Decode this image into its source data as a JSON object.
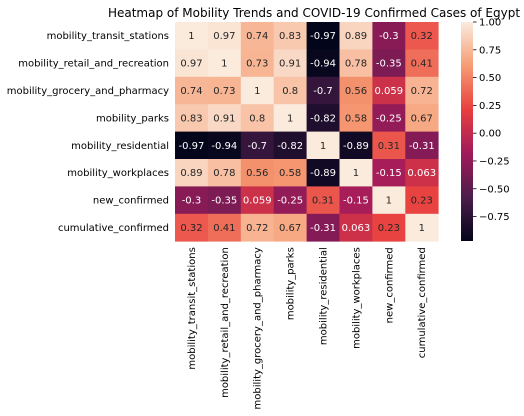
{
  "chart_data": {
    "type": "heatmap",
    "title": "Heatmap of Mobility Trends and COVID-19 Confirmed Cases of Egypt",
    "labels": [
      "mobility_transit_stations",
      "mobility_retail_and_recreation",
      "mobility_grocery_and_pharmacy",
      "mobility_parks",
      "mobility_residential",
      "mobility_workplaces",
      "new_confirmed",
      "cumulative_confirmed"
    ],
    "values": [
      [
        1,
        0.97,
        0.74,
        0.83,
        -0.97,
        0.89,
        -0.3,
        0.32
      ],
      [
        0.97,
        1,
        0.73,
        0.91,
        -0.94,
        0.78,
        -0.35,
        0.41
      ],
      [
        0.74,
        0.73,
        1,
        0.8,
        -0.7,
        0.56,
        0.059,
        0.72
      ],
      [
        0.83,
        0.91,
        0.8,
        1,
        -0.82,
        0.58,
        -0.25,
        0.67
      ],
      [
        -0.97,
        -0.94,
        -0.7,
        -0.82,
        1,
        -0.89,
        0.31,
        -0.31
      ],
      [
        0.89,
        0.78,
        0.56,
        0.58,
        -0.89,
        1,
        -0.15,
        0.063
      ],
      [
        -0.3,
        -0.35,
        0.059,
        -0.25,
        0.31,
        -0.15,
        1,
        0.23
      ],
      [
        0.32,
        0.41,
        0.72,
        0.67,
        -0.31,
        0.063,
        0.23,
        1
      ]
    ],
    "cell_text": [
      [
        "1",
        "0.97",
        "0.74",
        "0.83",
        "-0.97",
        "0.89",
        "-0.3",
        "0.32"
      ],
      [
        "0.97",
        "1",
        "0.73",
        "0.91",
        "-0.94",
        "0.78",
        "-0.35",
        "0.41"
      ],
      [
        "0.74",
        "0.73",
        "1",
        "0.8",
        "-0.7",
        "0.56",
        "0.059",
        "0.72"
      ],
      [
        "0.83",
        "0.91",
        "0.8",
        "1",
        "-0.82",
        "0.58",
        "-0.25",
        "0.67"
      ],
      [
        "-0.97",
        "-0.94",
        "-0.7",
        "-0.82",
        "1",
        "-0.89",
        "0.31",
        "-0.31"
      ],
      [
        "0.89",
        "0.78",
        "0.56",
        "0.58",
        "-0.89",
        "1",
        "-0.15",
        "0.063"
      ],
      [
        "-0.3",
        "-0.35",
        "0.059",
        "-0.25",
        "0.31",
        "-0.15",
        "1",
        "0.23"
      ],
      [
        "0.32",
        "0.41",
        "0.72",
        "0.67",
        "-0.31",
        "0.063",
        "0.23",
        "1"
      ]
    ],
    "colorbar": {
      "vmin": -0.97,
      "vmax": 1,
      "ticks": [
        1.0,
        0.75,
        0.5,
        0.25,
        0.0,
        -0.25,
        -0.5,
        -0.75
      ],
      "tick_labels": [
        "1.00",
        "0.75",
        "0.50",
        "0.25",
        "0.00",
        "−0.25",
        "−0.50",
        "−0.75"
      ]
    },
    "colormap": [
      "#03051a",
      "#4c1d4b",
      "#a11a5b",
      "#e83f3f",
      "#f69c73",
      "#faebdd"
    ]
  }
}
